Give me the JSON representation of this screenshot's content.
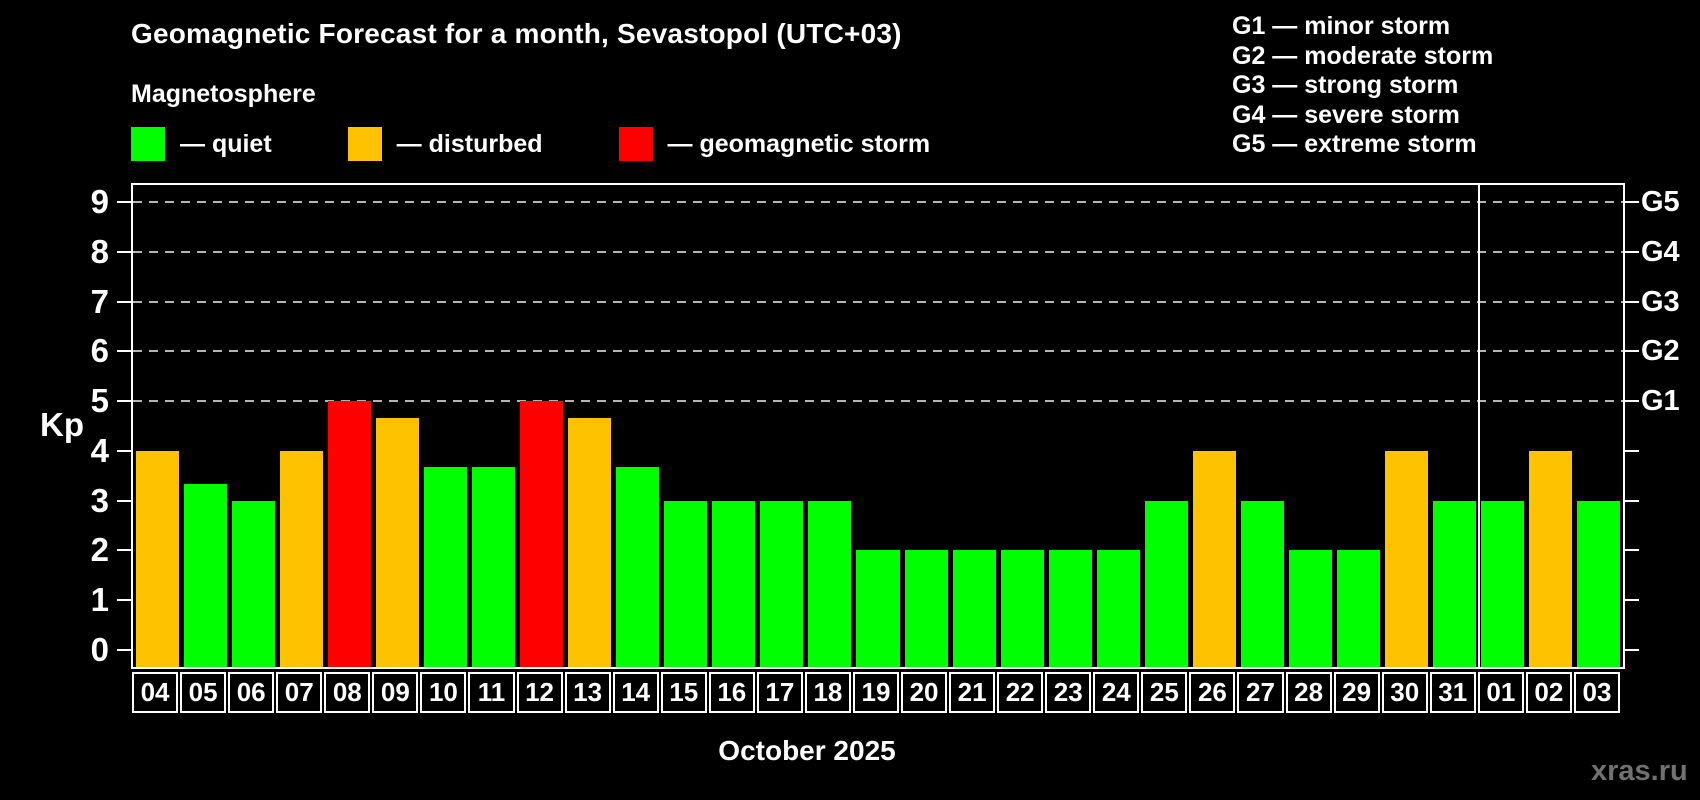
{
  "header": {
    "title": "Geomagnetic Forecast for a month, Sevastopol (UTC+03)",
    "subtitle": "Magnetosphere",
    "watermark": "xras.ru"
  },
  "legend": [
    {
      "name": "quiet",
      "label": "— quiet",
      "color": "#00ff00"
    },
    {
      "name": "disturbed",
      "label": "— disturbed",
      "color": "#ffc200"
    },
    {
      "name": "storm",
      "label": "— geomagnetic storm",
      "color": "#ff0000"
    }
  ],
  "storm_scale": [
    {
      "code": "G1",
      "label": "G1 — minor storm"
    },
    {
      "code": "G2",
      "label": "G2 — moderate storm"
    },
    {
      "code": "G3",
      "label": "G3 — strong storm"
    },
    {
      "code": "G4",
      "label": "G4 — severe storm"
    },
    {
      "code": "G5",
      "label": "G5 — extreme storm"
    }
  ],
  "chart_data": {
    "type": "bar",
    "title": "Geomagnetic Forecast for a month, Sevastopol (UTC+03)",
    "xlabel": "October 2025",
    "ylabel": "Kp",
    "ylim": [
      -0.35,
      9.35
    ],
    "yticks": [
      0,
      1,
      2,
      3,
      4,
      5,
      6,
      7,
      8,
      9
    ],
    "gridlines_at": [
      5,
      6,
      7,
      8,
      9
    ],
    "grid": "dashed horizontal lines at Kp 5-9",
    "legend_position": "top-left",
    "right_axis": [
      {
        "kp": 5,
        "label": "G1"
      },
      {
        "kp": 6,
        "label": "G2"
      },
      {
        "kp": 7,
        "label": "G3"
      },
      {
        "kp": 8,
        "label": "G4"
      },
      {
        "kp": 9,
        "label": "G5"
      }
    ],
    "categories": [
      "04",
      "05",
      "06",
      "07",
      "08",
      "09",
      "10",
      "11",
      "12",
      "13",
      "14",
      "15",
      "16",
      "17",
      "18",
      "19",
      "20",
      "21",
      "22",
      "23",
      "24",
      "25",
      "26",
      "27",
      "28",
      "29",
      "30",
      "31",
      "01",
      "02",
      "03"
    ],
    "values": [
      4,
      3.33,
      3,
      4,
      5,
      4.67,
      3.67,
      3.67,
      5,
      4.67,
      3.67,
      3,
      3,
      3,
      3,
      2,
      2,
      2,
      2,
      2,
      2,
      3,
      4,
      3,
      2,
      2,
      4,
      3,
      3,
      4,
      3
    ],
    "states": [
      "disturbed",
      "quiet",
      "quiet",
      "disturbed",
      "storm",
      "disturbed",
      "quiet",
      "quiet",
      "storm",
      "disturbed",
      "quiet",
      "quiet",
      "quiet",
      "quiet",
      "quiet",
      "quiet",
      "quiet",
      "quiet",
      "quiet",
      "quiet",
      "quiet",
      "quiet",
      "disturbed",
      "quiet",
      "quiet",
      "quiet",
      "disturbed",
      "quiet",
      "quiet",
      "disturbed",
      "quiet"
    ],
    "state_colors": {
      "quiet": "#00ff00",
      "disturbed": "#ffc200",
      "storm": "#ff0000"
    },
    "month_separator_after": "31"
  }
}
